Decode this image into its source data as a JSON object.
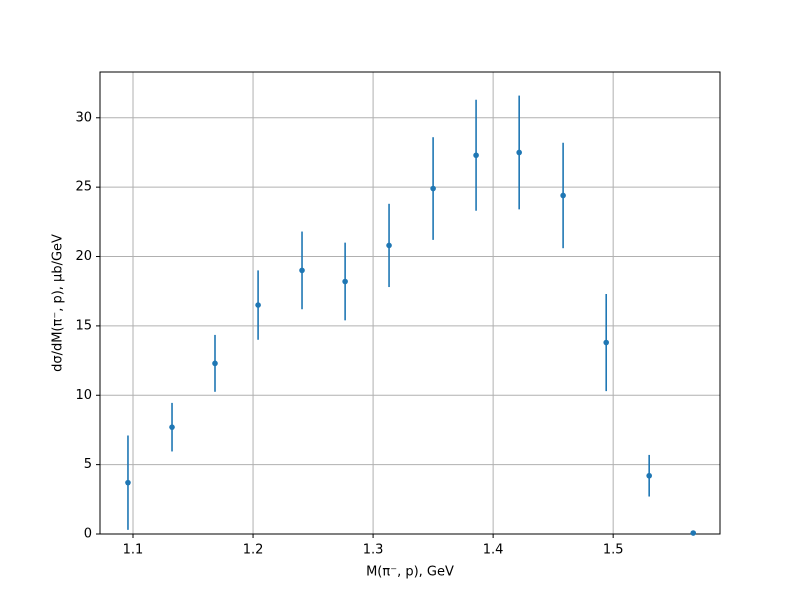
{
  "chart_data": {
    "type": "errorbar",
    "xlabel": "M(π⁻, p), GeV",
    "ylabel": "dσ/dM(π⁻, p), μb/GeV",
    "x": [
      1.0958,
      1.1325,
      1.1683,
      1.2042,
      1.2408,
      1.2767,
      1.3133,
      1.35,
      1.3858,
      1.4217,
      1.4583,
      1.4942,
      1.53,
      1.5667
    ],
    "values": [
      3.7,
      7.7,
      12.3,
      16.5,
      19.0,
      18.2,
      20.8,
      24.9,
      27.3,
      27.5,
      24.4,
      13.8,
      4.2,
      0.07
    ],
    "errors": [
      3.4,
      1.75,
      2.05,
      2.5,
      2.8,
      2.8,
      3.0,
      3.7,
      4.0,
      4.1,
      3.8,
      3.5,
      1.5,
      0
    ],
    "color": "#1f77b4",
    "xlim": [
      1.0725,
      1.589
    ],
    "ylim": [
      0,
      33.3
    ],
    "xticks": [
      1.1,
      1.2,
      1.3,
      1.4,
      1.5
    ],
    "yticks": [
      0,
      5,
      10,
      15,
      20,
      25,
      30
    ],
    "grid": true
  }
}
